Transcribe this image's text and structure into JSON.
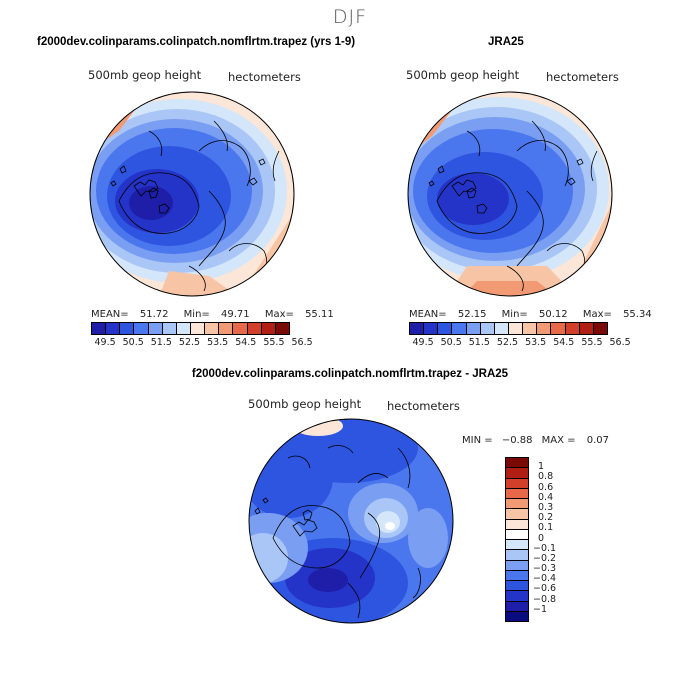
{
  "season": "DJF",
  "colors": {
    "ramp": [
      "#1e1ea8",
      "#2434c8",
      "#2d55e0",
      "#4a77ee",
      "#7a9ef2",
      "#a9c6f6",
      "#d4e6fa",
      "#fbe6d7",
      "#f8c4a6",
      "#f29a74",
      "#e8684a",
      "#d3402a",
      "#b01e14",
      "#7a0a06"
    ],
    "diff_ramp": [
      "#7a0a06",
      "#b01e14",
      "#d3402a",
      "#e8684a",
      "#f29a74",
      "#f8c4a6",
      "#fbe6d7",
      "#ffffff",
      "#d4e6fa",
      "#a9c6f6",
      "#7a9ef2",
      "#4a77ee",
      "#2d55e0",
      "#2434c8",
      "#1e1ea8",
      "#0b0b80"
    ],
    "land_outline": "#000000"
  },
  "panels": {
    "model": {
      "title": "f2000dev.colinparams.colinpatch.nomflrtm.trapez (yrs 1-9)",
      "variable": "500mb geop height",
      "units": "hectometers",
      "mean_label": "MEAN=",
      "mean": "51.72",
      "min_label": "Min=",
      "min": "49.71",
      "max_label": "Max=",
      "max": "55.11"
    },
    "obs": {
      "title": "JRA25",
      "variable": "500mb geop height",
      "units": "hectometers",
      "mean_label": "MEAN=",
      "mean": "52.15",
      "min_label": "Min=",
      "min": "50.12",
      "max_label": "Max=",
      "max": "55.34"
    },
    "diff": {
      "title": "f2000dev.colinparams.colinpatch.nomflrtm.trapez - JRA25",
      "variable": "500mb geop height",
      "units": "hectometers",
      "min_label": "MIN =",
      "min": "−0.88",
      "max_label": "MAX =",
      "max": "0.07"
    }
  },
  "colorbar": {
    "labels": [
      "49.5",
      "50.5",
      "51.5",
      "52.5",
      "53.5",
      "54.5",
      "55.5",
      "56.5"
    ]
  },
  "diff_colorbar": {
    "labels": [
      "1",
      "0.8",
      "0.6",
      "0.4",
      "0.3",
      "0.2",
      "0.1",
      "0",
      "−0.1",
      "−0.2",
      "−0.3",
      "−0.4",
      "−0.6",
      "−0.8",
      "−1"
    ]
  }
}
